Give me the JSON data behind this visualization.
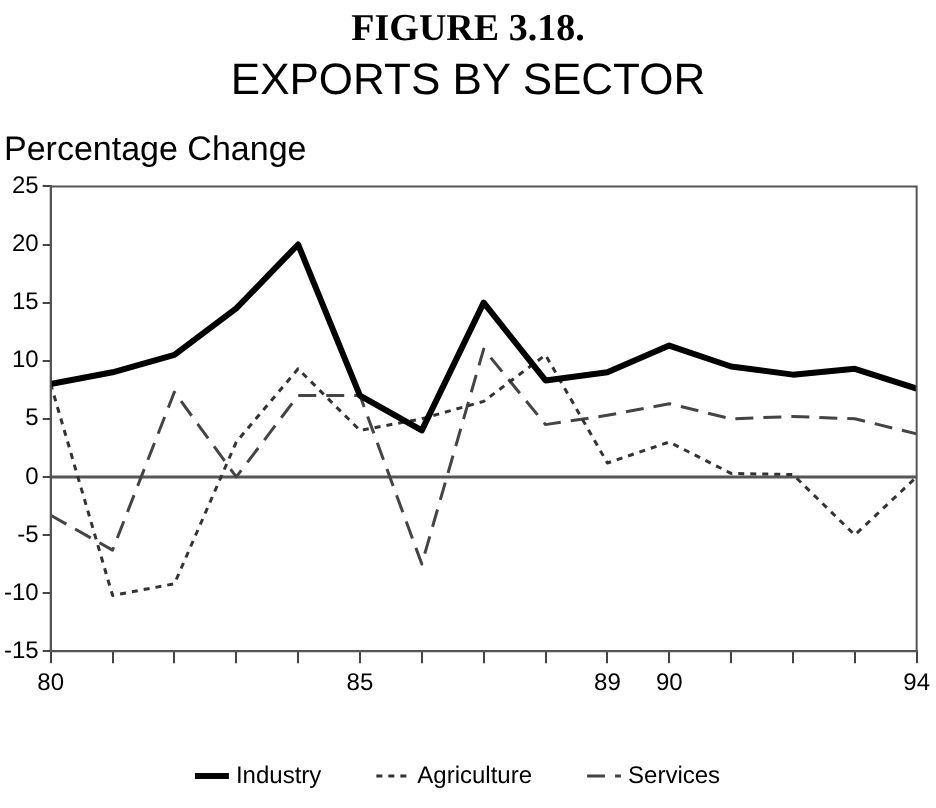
{
  "chart_data": {
    "type": "line",
    "title": "FIGURE 3.18.",
    "subtitle": "EXPORTS BY SECTOR",
    "ylabel": "Percentage Change",
    "x": [
      80,
      81,
      82,
      83,
      84,
      85,
      86,
      87,
      88,
      89,
      90,
      91,
      92,
      93,
      94
    ],
    "xlim": [
      80,
      94
    ],
    "xticks": [
      80,
      {
        "value": 81,
        "label": null
      },
      {
        "value": 82,
        "label": null
      },
      {
        "value": 83,
        "label": null
      },
      {
        "value": 84,
        "label": null
      },
      85,
      {
        "value": 86,
        "label": null
      },
      {
        "value": 87,
        "label": null
      },
      {
        "value": 88,
        "label": null
      },
      89,
      90,
      {
        "value": 91,
        "label": null
      },
      {
        "value": 92,
        "label": null
      },
      {
        "value": 93,
        "label": null
      },
      94
    ],
    "ylim": [
      -15,
      25
    ],
    "yticks": [
      -15,
      -10,
      -5,
      0,
      5,
      10,
      15,
      20,
      25
    ],
    "series": [
      {
        "name": "Industry",
        "color": "#000000",
        "line_style": "solid",
        "values": [
          8,
          9,
          10.5,
          14.5,
          20,
          7,
          4,
          15,
          8.3,
          9,
          11.3,
          9.5,
          8.8,
          9.3,
          7.6
        ]
      },
      {
        "name": "Agriculture",
        "color": "#333333",
        "line_style": "dotted",
        "values": [
          8,
          -10.2,
          -9.2,
          3,
          9.3,
          4,
          5,
          6.5,
          10.5,
          1.2,
          3,
          0.3,
          0.2,
          -5,
          0
        ]
      },
      {
        "name": "Services",
        "color": "#444444",
        "line_style": "dashed",
        "values": [
          -3.3,
          -6.3,
          7.3,
          0,
          7,
          7,
          -7.5,
          11,
          4.5,
          5.3,
          6.3,
          5,
          5.2,
          5,
          3.7
        ]
      }
    ],
    "ref_lines": [
      {
        "axis": "y",
        "value": 0,
        "color": "#555555"
      }
    ],
    "grid": false,
    "legend": "bottom",
    "marker": "none"
  }
}
